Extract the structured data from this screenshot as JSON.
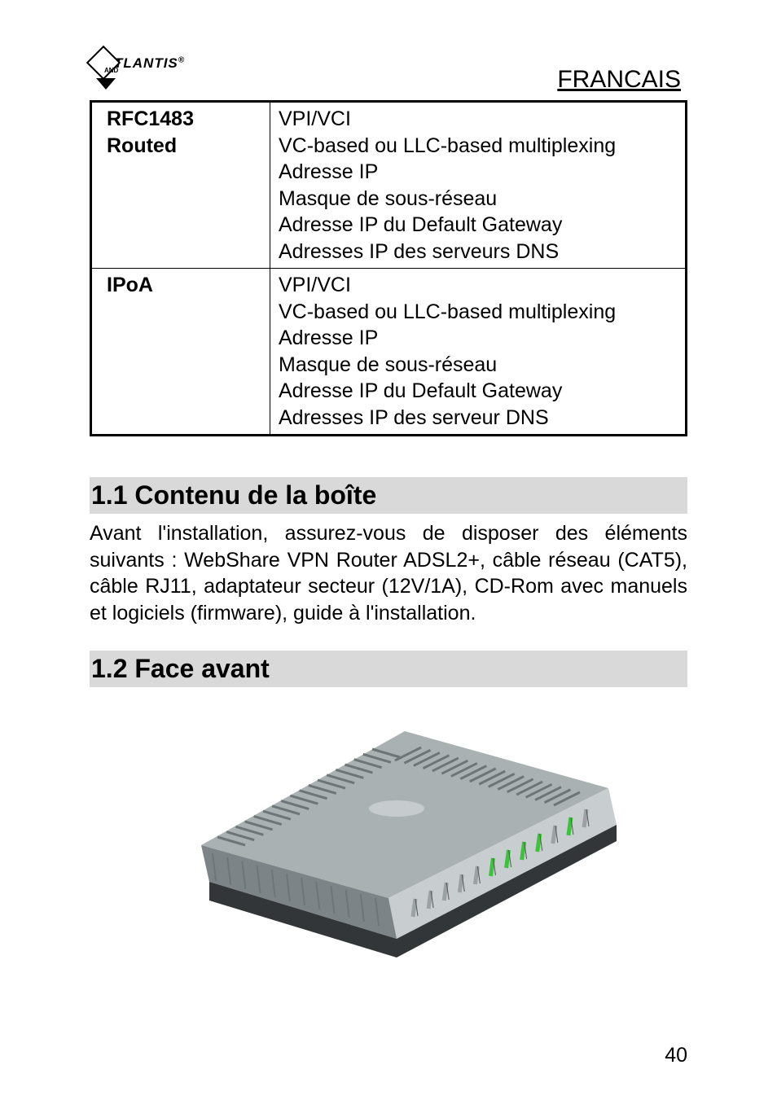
{
  "header": {
    "logo_text": "TLANTIS",
    "logo_reg": "®",
    "logo_and": "AND",
    "language_label": "FRANCAIS"
  },
  "table": {
    "rows": [
      {
        "label": "RFC1483\nRouted",
        "lines": [
          "VPI/VCI",
          "VC-based ou LLC-based multiplexing",
          "Adresse IP",
          "Masque de sous-réseau",
          "Adresse IP du Default Gateway",
          "Adresses IP des serveurs DNS"
        ]
      },
      {
        "label": "IPoA",
        "lines": [
          "VPI/VCI",
          "VC-based ou LLC-based multiplexing",
          "Adresse IP",
          "Masque de sous-réseau",
          "Adresse IP du Default Gateway",
          "Adresses IP des serveur DNS"
        ]
      }
    ]
  },
  "sections": {
    "s1": {
      "heading": "1.1 Contenu de la boîte",
      "body": "Avant l'installation, assurez-vous de disposer des éléments suivants : WebShare  VPN Router ADSL2+, câble réseau (CAT5), câble RJ11, adaptateur secteur (12V/1A), CD-Rom avec manuels et logiciels (firmware), guide à l'installation."
    },
    "s2": {
      "heading": "1.2 Face avant"
    }
  },
  "router": {
    "body_top_color": "#aab1b3",
    "body_side_color": "#7c8487",
    "body_bottom_color": "#323638",
    "vent_color": "#6c7678",
    "led_off": "#9aa2a4",
    "led_on": "#3bc43b",
    "front_panel": "#c8cdd0"
  },
  "page_number": "40"
}
